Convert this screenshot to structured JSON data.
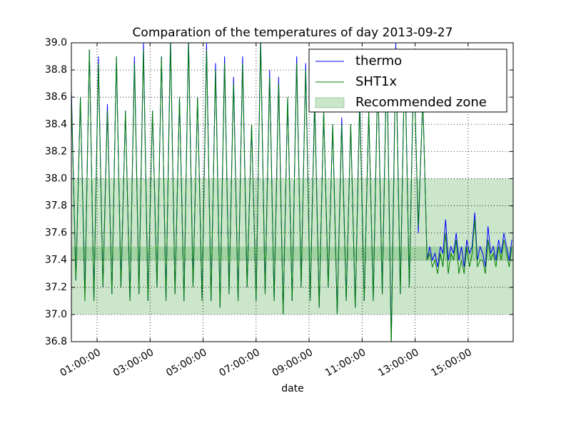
{
  "chart_data": {
    "type": "line",
    "title": "Comparation of the temperatures of day 2013-09-27",
    "x_label": "date",
    "x": [
      0.03,
      0.2,
      0.37,
      0.54,
      0.71,
      0.88,
      1.05,
      1.22,
      1.39,
      1.56,
      1.73,
      1.9,
      2.07,
      2.24,
      2.41,
      2.58,
      2.75,
      2.92,
      3.09,
      3.26,
      3.43,
      3.6,
      3.77,
      3.94,
      4.11,
      4.28,
      4.45,
      4.62,
      4.79,
      4.96,
      5.13,
      5.3,
      5.47,
      5.64,
      5.81,
      5.98,
      6.15,
      6.32,
      6.49,
      6.66,
      6.83,
      7.0,
      7.17,
      7.34,
      7.51,
      7.68,
      7.85,
      8.02,
      8.19,
      8.36,
      8.53,
      8.7,
      8.87,
      9.04,
      9.21,
      9.38,
      9.55,
      9.72,
      9.89,
      10.06,
      10.23,
      10.4,
      10.57,
      10.74,
      10.91,
      11.08,
      11.25,
      11.42,
      11.59,
      11.76,
      11.93,
      12.1,
      12.27,
      12.44,
      12.61,
      12.78,
      12.95,
      13.12,
      13.29,
      13.45,
      13.55,
      13.65,
      13.75,
      13.85,
      13.95,
      14.05,
      14.15,
      14.25,
      14.35,
      14.45,
      14.55,
      14.65,
      14.75,
      14.85,
      14.95,
      15.05,
      15.15,
      15.25,
      15.35,
      15.45,
      15.55,
      15.65,
      15.75,
      15.85,
      15.95,
      16.05,
      16.15,
      16.25,
      16.35,
      16.45,
      16.55,
      16.65
    ],
    "series": [
      {
        "name": "thermo",
        "color": "#0000ff",
        "values": [
          38.65,
          37.25,
          38.6,
          37.15,
          38.95,
          37.1,
          38.9,
          37.2,
          38.55,
          37.15,
          38.9,
          37.2,
          38.5,
          37.1,
          38.9,
          37.15,
          39.0,
          37.1,
          38.5,
          37.2,
          38.9,
          37.1,
          39.05,
          37.15,
          38.6,
          37.1,
          39.05,
          37.2,
          38.6,
          37.1,
          39.0,
          37.1,
          38.85,
          37.05,
          38.9,
          37.15,
          38.75,
          37.1,
          38.9,
          37.2,
          38.4,
          37.1,
          39.05,
          37.15,
          38.8,
          37.1,
          38.75,
          37.0,
          38.6,
          37.1,
          38.9,
          37.2,
          38.85,
          37.1,
          38.6,
          37.05,
          38.5,
          37.2,
          38.4,
          37.0,
          38.45,
          37.1,
          38.4,
          37.05,
          38.6,
          37.1,
          38.5,
          37.1,
          38.8,
          37.15,
          38.95,
          36.8,
          39.0,
          37.15,
          38.95,
          37.2,
          38.9,
          37.6,
          38.6,
          37.4,
          37.5,
          37.4,
          37.45,
          37.35,
          37.5,
          37.45,
          37.7,
          37.4,
          37.5,
          37.45,
          37.6,
          37.4,
          37.5,
          37.35,
          37.55,
          37.45,
          37.5,
          37.75,
          37.4,
          37.5,
          37.45,
          37.35,
          37.65,
          37.45,
          37.5,
          37.4,
          37.55,
          37.45,
          37.6,
          37.5,
          37.4,
          37.55
        ]
      },
      {
        "name": "SHT1x",
        "color": "#008000",
        "values": [
          38.6,
          37.25,
          38.6,
          37.1,
          38.95,
          37.1,
          38.85,
          37.2,
          38.5,
          37.15,
          38.9,
          37.2,
          38.5,
          37.1,
          38.85,
          37.15,
          38.95,
          37.1,
          38.5,
          37.2,
          38.9,
          37.1,
          39.0,
          37.15,
          38.6,
          37.1,
          39.0,
          37.2,
          38.6,
          37.1,
          38.95,
          37.1,
          38.8,
          37.05,
          38.85,
          37.15,
          38.7,
          37.1,
          38.85,
          37.2,
          38.4,
          37.1,
          39.0,
          37.15,
          38.75,
          37.1,
          38.7,
          37.0,
          38.6,
          37.1,
          38.85,
          37.2,
          38.8,
          37.1,
          38.55,
          37.05,
          38.5,
          37.2,
          38.4,
          37.0,
          38.4,
          37.1,
          38.4,
          37.05,
          38.55,
          37.1,
          38.5,
          37.1,
          38.75,
          37.15,
          38.9,
          36.75,
          38.95,
          37.15,
          38.9,
          37.2,
          38.85,
          37.65,
          38.6,
          37.4,
          37.45,
          37.35,
          37.4,
          37.3,
          37.45,
          37.35,
          37.6,
          37.3,
          37.45,
          37.4,
          37.55,
          37.3,
          37.4,
          37.3,
          37.5,
          37.35,
          37.45,
          37.7,
          37.35,
          37.4,
          37.4,
          37.3,
          37.55,
          37.4,
          37.45,
          37.35,
          37.5,
          37.4,
          37.55,
          37.45,
          37.35,
          37.5
        ]
      }
    ],
    "zone_name": "Recommended zone",
    "zone_color": "#008000",
    "zones": [
      {
        "from": 37.0,
        "to": 38.0
      },
      {
        "from": 37.4,
        "to": 37.5
      }
    ],
    "xlim": [
      0.03,
      16.7
    ],
    "xticks": [
      {
        "value": 1,
        "label": "01:00:00"
      },
      {
        "value": 3,
        "label": "03:00:00"
      },
      {
        "value": 5,
        "label": "05:00:00"
      },
      {
        "value": 7,
        "label": "07:00:00"
      },
      {
        "value": 9,
        "label": "09:00:00"
      },
      {
        "value": 11,
        "label": "11:00:00"
      },
      {
        "value": 13,
        "label": "13:00:00"
      },
      {
        "value": 15,
        "label": "15:00:00"
      }
    ],
    "ylim": [
      36.8,
      39.0
    ],
    "yticks": [
      {
        "value": 36.8,
        "label": "36.8"
      },
      {
        "value": 37,
        "label": "37.0"
      },
      {
        "value": 37.2,
        "label": "37.2"
      },
      {
        "value": 37.4,
        "label": "37.4"
      },
      {
        "value": 37.6,
        "label": "37.6"
      },
      {
        "value": 37.8,
        "label": "37.8"
      },
      {
        "value": 38,
        "label": "38.0"
      },
      {
        "value": 38.2,
        "label": "38.2"
      },
      {
        "value": 38.4,
        "label": "38.4"
      },
      {
        "value": 38.6,
        "label": "38.6"
      },
      {
        "value": 38.8,
        "label": "38.8"
      },
      {
        "value": 39,
        "label": "39.0"
      }
    ],
    "grid": true,
    "legend": "upper right"
  }
}
